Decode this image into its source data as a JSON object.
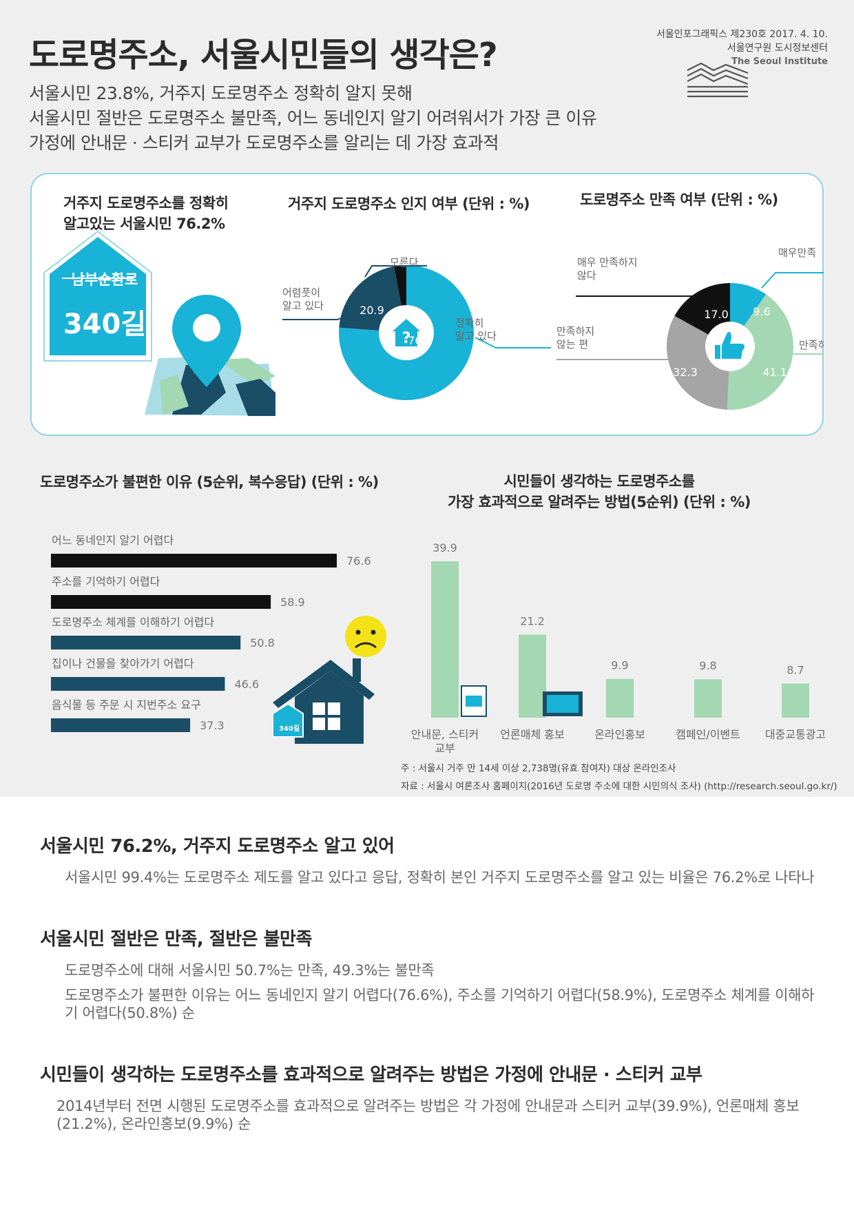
{
  "header": {
    "title": "도로명주소, 서울시민들의 생각은?",
    "issue": "서울인포그래픽스 제230호 2017. 4. 10.",
    "org": "서울연구원 도시정보센터",
    "org_en": "The Seoul Institute",
    "subtitles": [
      "서울시민 23.8%, 거주지 도로명주소 정확히 알지 못해",
      "서울시민 절반은 도로명주소 불만족, 어느 동네인지 알기 어려워서가 가장 큰 이유",
      "가정에 안내문 · 스티커 교부가 도로명주소를 알리는 데 가장 효과적"
    ]
  },
  "highlight": {
    "text_line1": "거주지 도로명주소를 정확히",
    "text_line2": "알고있는 서울시민 76.2%",
    "sign_road": "남부순환로",
    "sign_num": "340길"
  },
  "colors": {
    "cyan": "#18b3d6",
    "navy": "#1a4d66",
    "black": "#111111",
    "green": "#a3d8b3",
    "gray": "#a5a5a5",
    "yellow": "#f4e219"
  },
  "chart_data": [
    {
      "type": "pie",
      "title": "거주지 도로명주소 인지 여부 (단위 : %)",
      "labels": [
        "정확히 알고 있다",
        "어렴풋이 알고 있다",
        "모른다"
      ],
      "values": [
        76.2,
        20.9,
        2.9
      ],
      "label_lines": [
        [
          "정확히",
          "알고 있다"
        ],
        [
          "어렴풋이",
          "알고 있다"
        ],
        [
          "모른다"
        ]
      ],
      "colors": [
        "#18b3d6",
        "#1a4d66",
        "#111111"
      ]
    },
    {
      "type": "pie",
      "title": "도로명주소 만족 여부 (단위 : %)",
      "labels": [
        "매우만족",
        "만족하는 편",
        "만족하지 않는 편",
        "매우 만족하지 않다"
      ],
      "values": [
        9.6,
        41.1,
        32.3,
        17.0
      ],
      "label_lines": [
        [
          "매우만족"
        ],
        [
          "만족하는 편"
        ],
        [
          "만족하지",
          "않는 편"
        ],
        [
          "매우 만족하지",
          "않다"
        ]
      ],
      "colors": [
        "#18b3d6",
        "#a3d8b3",
        "#a5a5a5",
        "#111111"
      ]
    },
    {
      "type": "bar",
      "orientation": "horizontal",
      "title": "도로명주소가 불편한 이유 (5순위, 복수응답) (단위 : %)",
      "categories": [
        "어느 동네인지 알기 어렵다",
        "주소를 기억하기 어렵다",
        "도로명주소 체계를 이해하기 어렵다",
        "집이나 건물을 찾아가기 어렵다",
        "음식물 등 주문 시 지번주소 요구"
      ],
      "values": [
        76.6,
        58.9,
        50.8,
        46.6,
        37.3
      ],
      "colors": [
        "#111111",
        "#111111",
        "#1a4d66",
        "#1a4d66",
        "#1a4d66"
      ]
    },
    {
      "type": "bar",
      "orientation": "vertical",
      "title_line1": "시민들이 생각하는 도로명주소를",
      "title_line2": "가장 효과적으로 알려주는 방법(5순위) (단위 : %)",
      "categories": [
        "안내문, 스티커 교부",
        "언론매체 홍보",
        "온라인홍보",
        "캠페인/이벤트",
        "대중교통광고"
      ],
      "category_lines": [
        [
          "안내문, 스티커",
          "교부"
        ],
        [
          "언론매체 홍보"
        ],
        [
          "온라인홍보"
        ],
        [
          "캠페인/이벤트"
        ],
        [
          "대중교통광고"
        ]
      ],
      "values": [
        39.9,
        21.2,
        9.9,
        9.8,
        8.7
      ],
      "color": "#a3d8b3"
    }
  ],
  "notes": {
    "note1": "주 : 서울시 거주 만 14세 이상 2,738명(유효 참여자) 대상 온라인조사",
    "note2": "자료 : 서울시 여론조사 홈페이지(2016년 도로명 주소에 대한 시민의식 조사) (http://research.seoul.go.kr/)"
  },
  "summary": [
    {
      "heading": "서울시민 76.2%, 거주지 도로명주소 알고 있어",
      "paras": [
        "서울시민 99.4%는 도로명주소 제도를 알고 있다고 응답, 정확히 본인 거주지 도로명주소를 알고 있는 비율은 76.2%로 나타나"
      ]
    },
    {
      "heading": "서울시민 절반은 만족, 절반은 불만족",
      "paras": [
        "도로명주소에 대해 서울시민 50.7%는 만족, 49.3%는 불만족",
        "도로명주소가 불편한 이유는 어느 동네인지 알기 어렵다(76.6%), 주소를 기억하기 어렵다(58.9%), 도로명주소 체계를 이해하기 어렵다(50.8%) 순"
      ]
    },
    {
      "heading": "시민들이 생각하는 도로명주소를 효과적으로 알려주는 방법은 가정에 안내문 · 스티커 교부",
      "paras": [
        "2014년부터 전면 시행된 도로명주소를 효과적으로 알려주는 방법은 각 가정에 안내문과 스티커 교부(39.9%), 언론매체 홍보(21.2%), 온라인홍보(9.9%) 순"
      ]
    }
  ]
}
